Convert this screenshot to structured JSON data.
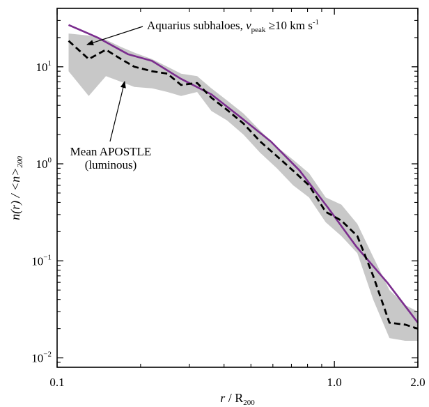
{
  "chart_data": {
    "type": "line",
    "xscale": "log",
    "yscale": "log",
    "xlim": [
      0.1,
      2.0
    ],
    "ylim": [
      0.008,
      40
    ],
    "xticks": [
      {
        "value": 0.1,
        "label": "0.1"
      },
      {
        "value": 1.0,
        "label": "1.0"
      },
      {
        "value": 2.0,
        "label": "2.0"
      }
    ],
    "yticks": [
      {
        "value": 0.01,
        "base": "10",
        "exp": "−2"
      },
      {
        "value": 0.1,
        "base": "10",
        "exp": "−1"
      },
      {
        "value": 1,
        "base": "10",
        "exp": "0"
      },
      {
        "value": 10,
        "base": "10",
        "exp": "1"
      }
    ],
    "xlabel": {
      "main": "r",
      "sep": " / R",
      "sub": "200"
    },
    "ylabel": {
      "main": "n(r) / <n>",
      "sub": "200"
    },
    "grid": false,
    "series": [
      {
        "style": "solid",
        "color": "#7b2d8e",
        "x": [
          0.11,
          0.14,
          0.18,
          0.22,
          0.28,
          0.36,
          0.46,
          0.59,
          0.75,
          0.95,
          1.2,
          1.55,
          2.0
        ],
        "y": [
          27,
          20,
          13.5,
          11.5,
          7.5,
          5.2,
          3.0,
          1.7,
          0.85,
          0.35,
          0.14,
          0.06,
          0.023
        ]
      },
      {
        "style": "dashed",
        "color": "#000000",
        "x": [
          0.11,
          0.13,
          0.15,
          0.17,
          0.19,
          0.22,
          0.25,
          0.28,
          0.32,
          0.36,
          0.41,
          0.47,
          0.54,
          0.62,
          0.71,
          0.81,
          0.93,
          1.06,
          1.21,
          1.38,
          1.58,
          1.8,
          2.0
        ],
        "y": [
          18.5,
          12,
          15,
          12,
          10,
          9,
          8.5,
          6.5,
          6.8,
          4.8,
          3.6,
          2.6,
          1.7,
          1.2,
          0.85,
          0.6,
          0.32,
          0.26,
          0.18,
          0.07,
          0.023,
          0.022,
          0.02
        ]
      }
    ],
    "band": {
      "color": "#c8c8c8",
      "x": [
        0.11,
        0.13,
        0.15,
        0.17,
        0.19,
        0.22,
        0.25,
        0.28,
        0.32,
        0.36,
        0.41,
        0.47,
        0.54,
        0.62,
        0.71,
        0.81,
        0.93,
        1.06,
        1.21,
        1.38,
        1.58,
        1.8,
        2.0
      ],
      "upper": [
        22,
        21,
        19,
        16,
        14,
        12,
        10,
        8.5,
        8.0,
        6.0,
        4.5,
        3.3,
        2.2,
        1.5,
        1.1,
        0.8,
        0.45,
        0.38,
        0.24,
        0.11,
        0.05,
        0.035,
        0.03
      ],
      "lower": [
        9,
        5,
        8,
        7,
        6.2,
        6.0,
        5.5,
        5.0,
        5.5,
        3.5,
        2.8,
        2.0,
        1.3,
        0.9,
        0.6,
        0.45,
        0.25,
        0.18,
        0.12,
        0.04,
        0.016,
        0.015,
        0.015
      ]
    },
    "annotations": [
      {
        "parts": [
          "Aquarius subhaloes, ",
          "v",
          "peak",
          " ≥10 km s",
          "-1"
        ],
        "arrow_to": [
          0.135,
          20
        ]
      },
      {
        "lines": [
          "Mean APOSTLE",
          "(luminous)"
        ],
        "arrow_to": [
          0.18,
          9.3
        ]
      }
    ]
  }
}
